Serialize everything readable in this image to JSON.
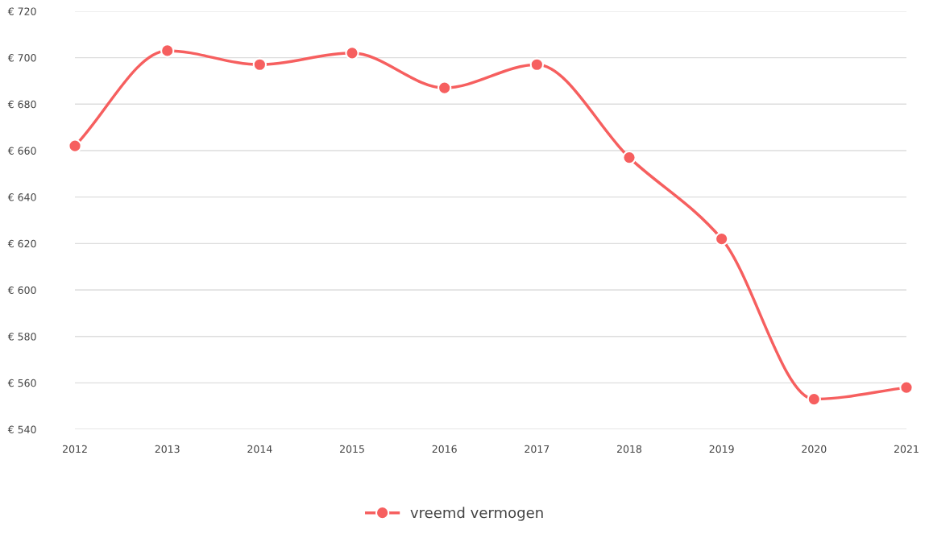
{
  "chart_data": {
    "type": "line",
    "categories": [
      "2012",
      "2013",
      "2014",
      "2015",
      "2016",
      "2017",
      "2018",
      "2019",
      "2020",
      "2021"
    ],
    "series": [
      {
        "name": "vreemd vermogen",
        "color": "#f65f5f",
        "values": [
          662,
          703,
          697,
          702,
          687,
          697,
          657,
          622,
          553,
          558
        ]
      }
    ],
    "ylim": [
      540,
      720
    ],
    "yticks": [
      {
        "value": 540,
        "label": "€ 540"
      },
      {
        "value": 560,
        "label": "€ 560"
      },
      {
        "value": 580,
        "label": "€ 580"
      },
      {
        "value": 600,
        "label": "€ 600"
      },
      {
        "value": 620,
        "label": "€ 620"
      },
      {
        "value": 640,
        "label": "€ 640"
      },
      {
        "value": 660,
        "label": "€ 660"
      },
      {
        "value": 680,
        "label": "€ 680"
      },
      {
        "value": 700,
        "label": "€ 700"
      },
      {
        "value": 720,
        "label": "€ 720"
      }
    ],
    "grid": "y",
    "legend": "bottom",
    "marker": "circle",
    "line_style": "solid"
  }
}
